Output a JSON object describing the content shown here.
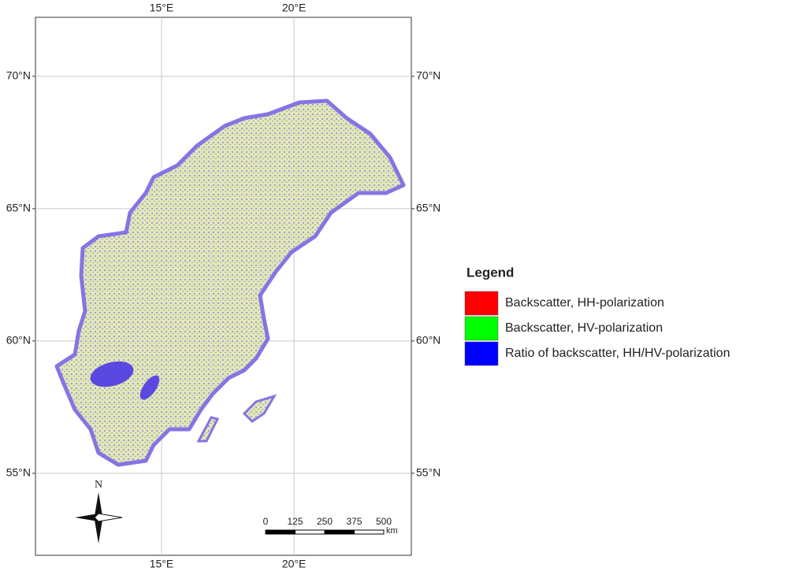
{
  "map": {
    "lon_range": [
      10.24,
      24.43
    ],
    "lat_range": [
      51.9,
      72.23
    ],
    "lon_ticks": [
      {
        "value": 15,
        "label": "15°E"
      },
      {
        "value": 20,
        "label": "20°E"
      }
    ],
    "lat_ticks": [
      {
        "value": 70,
        "label": "70°N"
      },
      {
        "value": 65,
        "label": "65°N"
      },
      {
        "value": 60,
        "label": "60°N"
      },
      {
        "value": 55,
        "label": "55°N"
      }
    ],
    "north_label": "N",
    "scale_bar": {
      "ticks": [
        0,
        125,
        250,
        375,
        500
      ],
      "unit": "km"
    }
  },
  "legend": {
    "title": "Legend",
    "items": [
      {
        "name": "Backscatter, HH-polarization",
        "color": "#ff0000"
      },
      {
        "name": "Backscatter, HV-polarization",
        "color": "#00ff00"
      },
      {
        "name": "Ratio of backscatter, HH/HV-polarization",
        "color": "#0000ff"
      }
    ]
  }
}
